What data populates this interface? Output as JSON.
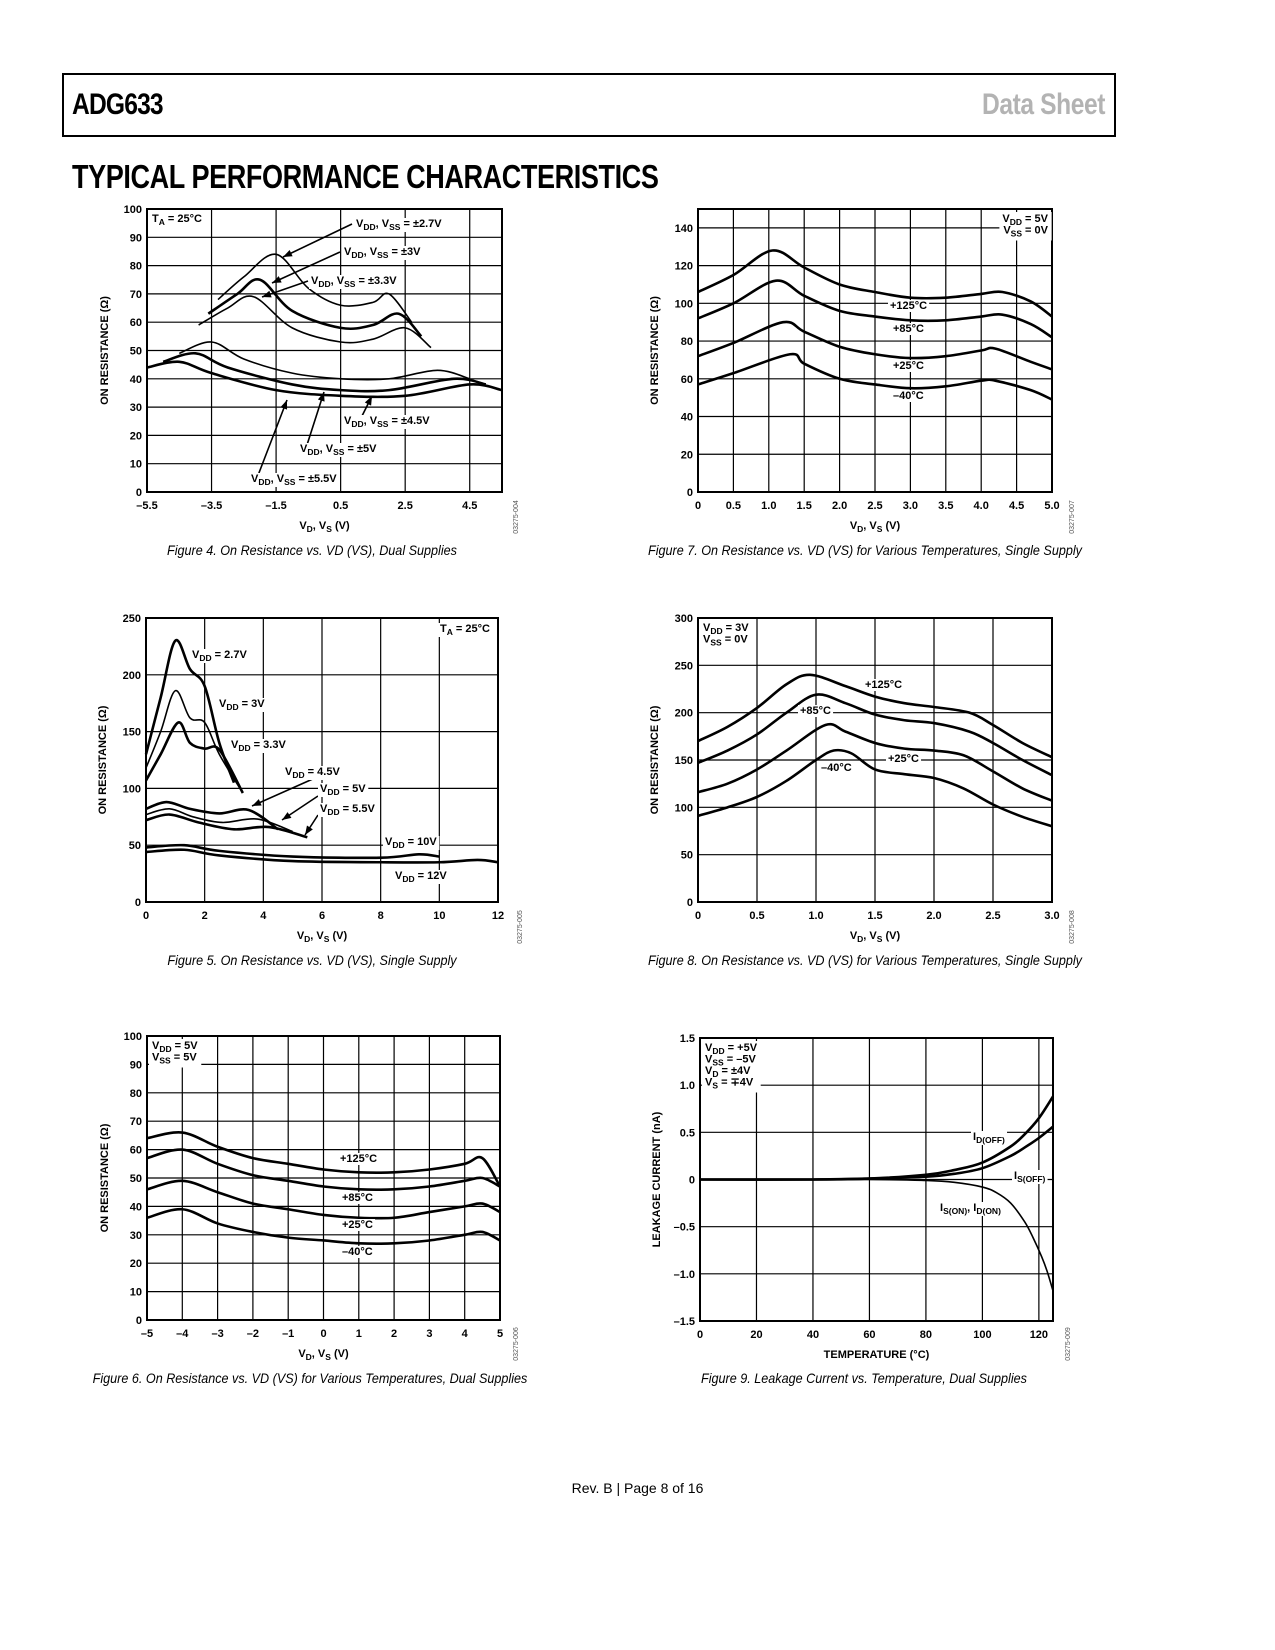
{
  "header": {
    "part_number": "ADG633",
    "doc_type": "Data Sheet"
  },
  "section_title": "TYPICAL PERFORMANCE CHARACTERISTICS",
  "footer": {
    "text": "Rev. B | Page 8 of 16"
  },
  "chart_data": [
    {
      "id": "fig4",
      "type": "line",
      "caption": "Figure 4. On Resistance vs. VD (VS), Dual Supplies",
      "code": "03275-004",
      "xlabel": "VD, VS (V)",
      "ylabel": "ON RESISTANCE (Ω)",
      "xlim": [
        -5.5,
        5.5
      ],
      "ylim": [
        0,
        100
      ],
      "xticks": [
        -5.5,
        -3.5,
        -1.5,
        0.5,
        2.5,
        4.5
      ],
      "xtick_labels": [
        "–5.5",
        "–3.5",
        "–1.5",
        "0.5",
        "2.5",
        "4.5"
      ],
      "yticks": [
        0,
        10,
        20,
        30,
        40,
        50,
        60,
        70,
        80,
        90,
        100
      ],
      "xgrid": [
        -5.5,
        -3.5,
        -1.5,
        0.5,
        2.5,
        4.5,
        5.5
      ],
      "grid": true,
      "annotation": "TA = 25°C",
      "series": [
        {
          "name": "VDD, VSS = ±2.7V",
          "x": [
            -3.3,
            -2.5,
            -1.5,
            -0.5,
            0.5,
            1.5,
            2.0,
            2.7
          ],
          "y": [
            68,
            76,
            84,
            72,
            66,
            67,
            70,
            60
          ]
        },
        {
          "name": "VDD, VSS = ±3V",
          "x": [
            -3.6,
            -2.7,
            -2.0,
            -1.0,
            0.5,
            1.5,
            2.3,
            3.0
          ],
          "y": [
            63,
            70,
            75,
            64,
            58,
            59,
            63,
            55
          ]
        },
        {
          "name": "VDD, VSS = ±3.3V",
          "x": [
            -3.9,
            -3.0,
            -2.2,
            -1.0,
            0.5,
            1.5,
            2.5,
            3.3
          ],
          "y": [
            59,
            65,
            69,
            58,
            53,
            54,
            58,
            51
          ]
        },
        {
          "name": "VDD, VSS = ±4.5V",
          "x": [
            -4.5,
            -3.5,
            -2.5,
            -1.0,
            0.5,
            2.0,
            3.5,
            4.5
          ],
          "y": [
            49,
            53,
            47,
            42,
            40,
            40,
            43,
            40
          ]
        },
        {
          "name": "VDD, VSS = ±5V",
          "x": [
            -5.0,
            -4.0,
            -3.0,
            -1.0,
            0.5,
            2.0,
            4.0,
            5.0
          ],
          "y": [
            46,
            49,
            44,
            38,
            36,
            36,
            40,
            38
          ]
        },
        {
          "name": "VDD, VSS = ±5.5V",
          "x": [
            -5.5,
            -4.5,
            -3.5,
            -1.5,
            0.5,
            2.5,
            4.5,
            5.5
          ],
          "y": [
            44,
            46,
            42,
            36,
            34,
            34,
            38,
            36
          ]
        }
      ]
    },
    {
      "id": "fig5",
      "type": "line",
      "caption": "Figure 5. On Resistance vs. VD (VS), Single Supply",
      "code": "03275-005",
      "xlabel": "VD, VS (V)",
      "ylabel": "ON RESISTANCE (Ω)",
      "xlim": [
        0,
        12
      ],
      "ylim": [
        0,
        250
      ],
      "xticks": [
        0,
        2,
        4,
        6,
        8,
        10,
        12
      ],
      "xtick_labels": [
        "0",
        "2",
        "4",
        "6",
        "8",
        "10",
        "12"
      ],
      "yticks": [
        0,
        50,
        100,
        150,
        200,
        250
      ],
      "xgrid": [
        0,
        2,
        4,
        6,
        8,
        10,
        12
      ],
      "grid": true,
      "annotation": "TA = 25°C",
      "series": [
        {
          "name": "VDD = 2.7V",
          "x": [
            0,
            0.5,
            1.0,
            1.5,
            2.0,
            2.5,
            3.0
          ],
          "y": [
            130,
            180,
            230,
            205,
            190,
            140,
            105
          ]
        },
        {
          "name": "VDD = 3V",
          "x": [
            0,
            0.5,
            1.0,
            1.5,
            2.0,
            2.5,
            3.3
          ],
          "y": [
            118,
            150,
            186,
            162,
            158,
            130,
            96
          ]
        },
        {
          "name": "VDD = 3.3V",
          "x": [
            0,
            0.5,
            1.1,
            1.5,
            2.0,
            2.5,
            3.3
          ],
          "y": [
            107,
            130,
            158,
            140,
            135,
            134,
            96
          ]
        },
        {
          "name": "VDD = 4.5V",
          "x": [
            0,
            0.7,
            1.5,
            2.5,
            3.5,
            4.5
          ],
          "y": [
            82,
            88,
            82,
            78,
            81,
            64
          ]
        },
        {
          "name": "VDD = 5V",
          "x": [
            0,
            0.8,
            1.6,
            2.6,
            3.8,
            5.0
          ],
          "y": [
            77,
            82,
            75,
            70,
            73,
            62
          ]
        },
        {
          "name": "VDD = 5.5V",
          "x": [
            0,
            0.8,
            1.8,
            3.0,
            4.2,
            5.5
          ],
          "y": [
            72,
            77,
            70,
            64,
            66,
            57
          ]
        },
        {
          "name": "VDD = 10V",
          "x": [
            0,
            1.3,
            2.5,
            5.0,
            8.0,
            9.3,
            10.0
          ],
          "y": [
            48,
            50,
            45,
            40,
            39,
            42,
            40
          ]
        },
        {
          "name": "VDD = 12V",
          "x": [
            0,
            1.3,
            2.5,
            5.0,
            8.0,
            10.0,
            11.3,
            12.0
          ],
          "y": [
            44,
            46,
            41,
            36,
            35,
            35,
            37,
            35
          ]
        }
      ]
    },
    {
      "id": "fig6",
      "type": "line",
      "caption": "Figure 6. On Resistance vs. VD (VS) for Various Temperatures, Dual Supplies",
      "code": "03275-006",
      "xlabel": "VD, VS (V)",
      "ylabel": "ON RESISTANCE (Ω)",
      "xlim": [
        -5,
        5
      ],
      "ylim": [
        0,
        100
      ],
      "xticks": [
        -5,
        -4,
        -3,
        -2,
        -1,
        0,
        1,
        2,
        3,
        4,
        5
      ],
      "xtick_labels": [
        "–5",
        "–4",
        "–3",
        "–2",
        "–1",
        "0",
        "1",
        "2",
        "3",
        "4",
        "5"
      ],
      "yticks": [
        0,
        10,
        20,
        30,
        40,
        50,
        60,
        70,
        80,
        90,
        100
      ],
      "xgrid": [
        -5,
        -4,
        -3,
        -2,
        -1,
        0,
        1,
        2,
        3,
        4,
        5
      ],
      "grid": true,
      "annotation": "VDD = 5V\nVSS = 5V",
      "series": [
        {
          "name": "+125°C",
          "x": [
            -5,
            -4,
            -3,
            -2,
            -1,
            0,
            1,
            2,
            3,
            4,
            4.5,
            5
          ],
          "y": [
            64,
            66,
            61,
            57,
            55,
            53,
            52,
            52,
            53,
            55,
            57,
            47
          ]
        },
        {
          "name": "+85°C",
          "x": [
            -5,
            -4,
            -3,
            -2,
            -1,
            0,
            1,
            2,
            3,
            4,
            4.5,
            5
          ],
          "y": [
            57,
            60,
            55,
            51,
            49,
            47,
            46,
            46,
            47,
            49,
            50,
            47
          ]
        },
        {
          "name": "+25°C",
          "x": [
            -5,
            -4,
            -3,
            -2,
            -1,
            0,
            1,
            2,
            3,
            4,
            4.5,
            5
          ],
          "y": [
            46,
            49,
            45,
            41,
            39,
            37,
            36,
            36,
            38,
            40,
            41,
            38
          ]
        },
        {
          "name": "–40°C",
          "x": [
            -5,
            -4,
            -3,
            -2,
            -1,
            0,
            1,
            2,
            3,
            4,
            4.5,
            5
          ],
          "y": [
            36,
            39,
            34,
            31,
            29,
            28,
            27,
            27,
            28,
            30,
            31,
            28
          ]
        }
      ]
    },
    {
      "id": "fig7",
      "type": "line",
      "caption": "Figure 7. On Resistance vs. VD (VS) for Various Temperatures, Single Supply",
      "code": "03275-007",
      "xlabel": "VD, VS (V)",
      "ylabel": "ON RESISTANCE (Ω)",
      "xlim": [
        0,
        5
      ],
      "ylim": [
        0,
        150
      ],
      "xticks": [
        0,
        0.5,
        1.0,
        1.5,
        2.0,
        2.5,
        3.0,
        3.5,
        4.0,
        4.5,
        5.0
      ],
      "xtick_labels": [
        "0",
        "0.5",
        "1.0",
        "1.5",
        "2.0",
        "2.5",
        "3.0",
        "3.5",
        "4.0",
        "4.5",
        "5.0"
      ],
      "yticks": [
        0,
        20,
        40,
        60,
        80,
        100,
        120,
        140
      ],
      "xgrid": [
        0,
        0.5,
        1.0,
        1.5,
        2.0,
        2.5,
        3.0,
        3.5,
        4.0,
        4.5,
        5.0
      ],
      "grid": true,
      "annotation": "VDD = 5V\nVSS = 0V",
      "series": [
        {
          "name": "+125°C",
          "x": [
            0,
            0.5,
            1.05,
            1.5,
            2.0,
            2.5,
            3.0,
            3.5,
            4.0,
            4.3,
            4.7,
            5.0
          ],
          "y": [
            106,
            115,
            128,
            119,
            110,
            106,
            103,
            103,
            105,
            106,
            101,
            93
          ]
        },
        {
          "name": "+85°C",
          "x": [
            0,
            0.5,
            1.1,
            1.5,
            2.0,
            2.5,
            3.0,
            3.5,
            4.0,
            4.3,
            4.7,
            5.0
          ],
          "y": [
            92,
            100,
            112,
            104,
            96,
            93,
            91,
            91,
            93,
            94,
            89,
            82
          ]
        },
        {
          "name": "+25°C",
          "x": [
            0,
            0.5,
            1.2,
            1.5,
            2.0,
            2.5,
            3.0,
            3.5,
            4.0,
            4.2,
            4.7,
            5.0
          ],
          "y": [
            72,
            79,
            90,
            85,
            77,
            73,
            71,
            72,
            75,
            76,
            69,
            65
          ]
        },
        {
          "name": "–40°C",
          "x": [
            0,
            0.5,
            1.3,
            1.5,
            2.0,
            2.5,
            3.0,
            3.5,
            4.0,
            4.2,
            4.7,
            5.0
          ],
          "y": [
            57,
            63,
            73,
            68,
            60,
            57,
            55,
            56,
            59,
            59,
            54,
            49
          ]
        }
      ]
    },
    {
      "id": "fig8",
      "type": "line",
      "caption": "Figure 8. On Resistance vs. VD (VS) for Various Temperatures, Single Supply",
      "code": "03275-008",
      "xlabel": "VD, VS (V)",
      "ylabel": "ON RESISTANCE (Ω)",
      "xlim": [
        0,
        3
      ],
      "ylim": [
        0,
        300
      ],
      "xticks": [
        0,
        0.5,
        1.0,
        1.5,
        2.0,
        2.5,
        3.0
      ],
      "xtick_labels": [
        "0",
        "0.5",
        "1.0",
        "1.5",
        "2.0",
        "2.5",
        "3.0"
      ],
      "yticks": [
        0,
        50,
        100,
        150,
        200,
        250,
        300
      ],
      "xgrid": [
        0,
        0.5,
        1.0,
        1.5,
        2.0,
        2.5,
        3.0
      ],
      "grid": true,
      "annotation": "VDD = 3V\nVSS = 0V",
      "series": [
        {
          "name": "+125°C",
          "x": [
            0,
            0.25,
            0.5,
            0.75,
            0.95,
            1.25,
            1.5,
            1.75,
            2.0,
            2.3,
            2.5,
            2.75,
            3.0
          ],
          "y": [
            170,
            185,
            205,
            230,
            240,
            228,
            217,
            210,
            206,
            200,
            187,
            168,
            153
          ]
        },
        {
          "name": "+85°C",
          "x": [
            0,
            0.25,
            0.5,
            0.75,
            1.0,
            1.25,
            1.5,
            1.75,
            2.0,
            2.3,
            2.5,
            2.75,
            3.0
          ],
          "y": [
            147,
            160,
            177,
            200,
            219,
            210,
            198,
            192,
            189,
            180,
            168,
            150,
            134
          ]
        },
        {
          "name": "+25°C",
          "x": [
            0,
            0.25,
            0.5,
            0.75,
            1.08,
            1.25,
            1.5,
            1.75,
            2.0,
            2.25,
            2.5,
            2.75,
            3.0
          ],
          "y": [
            116,
            125,
            140,
            160,
            187,
            180,
            168,
            162,
            160,
            155,
            138,
            120,
            107
          ]
        },
        {
          "name": "–40°C",
          "x": [
            0,
            0.25,
            0.5,
            0.75,
            1.0,
            1.15,
            1.3,
            1.5,
            1.75,
            2.0,
            2.25,
            2.5,
            2.75,
            3.0
          ],
          "y": [
            91,
            100,
            111,
            128,
            150,
            160,
            157,
            140,
            135,
            131,
            120,
            103,
            90,
            80
          ]
        }
      ]
    },
    {
      "id": "fig9",
      "type": "line",
      "caption": "Figure 9. Leakage Current vs. Temperature, Dual Supplies",
      "code": "03275-009",
      "xlabel": "TEMPERATURE (°C)",
      "ylabel": "LEAKAGE CURRENT (nA)",
      "xlim": [
        0,
        125
      ],
      "ylim": [
        -1.5,
        1.5
      ],
      "xticks": [
        0,
        20,
        40,
        60,
        80,
        100,
        120
      ],
      "xtick_labels": [
        "0",
        "20",
        "40",
        "60",
        "80",
        "100",
        "120"
      ],
      "yticks": [
        -1.5,
        -1.0,
        -0.5,
        0,
        0.5,
        1.0,
        1.5
      ],
      "ytick_labels": [
        "–1.5",
        "–1.0",
        "–0.5",
        "0",
        "0.5",
        "1.0",
        "1.5"
      ],
      "xgrid": [
        0,
        20,
        40,
        60,
        80,
        100,
        120,
        125
      ],
      "grid": true,
      "annotation": "VDD = +5V\nVSS = –5V\nVD = ±4V\nVS = ∓4V",
      "series": [
        {
          "name": "ID(OFF)",
          "x": [
            0,
            40,
            60,
            80,
            90,
            100,
            110,
            115,
            120,
            125
          ],
          "y": [
            0,
            0,
            0.01,
            0.05,
            0.1,
            0.18,
            0.35,
            0.48,
            0.65,
            0.88
          ]
        },
        {
          "name": "IS(OFF)",
          "x": [
            0,
            40,
            60,
            80,
            90,
            100,
            110,
            115,
            120,
            125
          ],
          "y": [
            0,
            0,
            0.01,
            0.03,
            0.06,
            0.12,
            0.25,
            0.34,
            0.44,
            0.56
          ]
        },
        {
          "name": "IS(ON), ID(ON)",
          "x": [
            0,
            60,
            80,
            90,
            100,
            105,
            110,
            115,
            118,
            121,
            123,
            125
          ],
          "y": [
            0,
            0,
            -0.01,
            -0.03,
            -0.08,
            -0.14,
            -0.25,
            -0.45,
            -0.62,
            -0.82,
            -0.98,
            -1.18
          ]
        }
      ]
    }
  ],
  "labels": {
    "fig4": [
      "TA = 25°C",
      "VDD, VSS = ±2.7V",
      "VDD, VSS = ±3V",
      "VDD, VSS = ±3.3V",
      "VDD, VSS = ±4.5V",
      "VDD, VSS = ±5V",
      "VDD, VSS = ±5.5V"
    ],
    "fig5": [
      "TA = 25°C",
      "VDD = 2.7V",
      "VDD = 3V",
      "VDD = 3.3V",
      "VDD = 4.5V",
      "VDD = 5V",
      "VDD = 5.5V",
      "VDD = 10V",
      "VDD = 12V"
    ],
    "fig6": [
      "+125°C",
      "+85°C",
      "+25°C",
      "–40°C"
    ],
    "fig7": [
      "+125°C",
      "+85°C",
      "+25°C",
      "–40°C"
    ],
    "fig8": [
      "+125°C",
      "+85°C",
      "+25°C",
      "–40°C"
    ],
    "fig9": [
      "ID(OFF)",
      "IS(OFF)",
      "IS(ON), ID(ON)"
    ]
  }
}
